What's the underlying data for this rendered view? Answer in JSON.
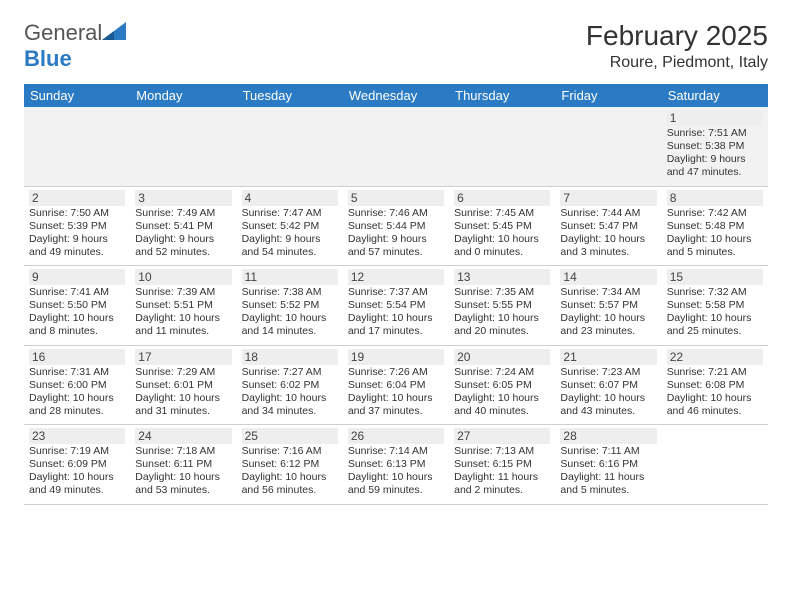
{
  "brand": {
    "name_a": "General",
    "name_b": "Blue"
  },
  "title": "February 2025",
  "location": "Roure, Piedmont, Italy",
  "colors": {
    "header_bg": "#2b7ac4",
    "header_fg": "#ffffff",
    "daynum_bg": "#eeeeee"
  },
  "day_headers": [
    "Sunday",
    "Monday",
    "Tuesday",
    "Wednesday",
    "Thursday",
    "Friday",
    "Saturday"
  ],
  "weeks": [
    [
      {
        "n": "",
        "lines": []
      },
      {
        "n": "",
        "lines": []
      },
      {
        "n": "",
        "lines": []
      },
      {
        "n": "",
        "lines": []
      },
      {
        "n": "",
        "lines": []
      },
      {
        "n": "",
        "lines": []
      },
      {
        "n": "1",
        "lines": [
          "Sunrise: 7:51 AM",
          "Sunset: 5:38 PM",
          "Daylight: 9 hours",
          "and 47 minutes."
        ]
      }
    ],
    [
      {
        "n": "2",
        "lines": [
          "Sunrise: 7:50 AM",
          "Sunset: 5:39 PM",
          "Daylight: 9 hours",
          "and 49 minutes."
        ]
      },
      {
        "n": "3",
        "lines": [
          "Sunrise: 7:49 AM",
          "Sunset: 5:41 PM",
          "Daylight: 9 hours",
          "and 52 minutes."
        ]
      },
      {
        "n": "4",
        "lines": [
          "Sunrise: 7:47 AM",
          "Sunset: 5:42 PM",
          "Daylight: 9 hours",
          "and 54 minutes."
        ]
      },
      {
        "n": "5",
        "lines": [
          "Sunrise: 7:46 AM",
          "Sunset: 5:44 PM",
          "Daylight: 9 hours",
          "and 57 minutes."
        ]
      },
      {
        "n": "6",
        "lines": [
          "Sunrise: 7:45 AM",
          "Sunset: 5:45 PM",
          "Daylight: 10 hours",
          "and 0 minutes."
        ]
      },
      {
        "n": "7",
        "lines": [
          "Sunrise: 7:44 AM",
          "Sunset: 5:47 PM",
          "Daylight: 10 hours",
          "and 3 minutes."
        ]
      },
      {
        "n": "8",
        "lines": [
          "Sunrise: 7:42 AM",
          "Sunset: 5:48 PM",
          "Daylight: 10 hours",
          "and 5 minutes."
        ]
      }
    ],
    [
      {
        "n": "9",
        "lines": [
          "Sunrise: 7:41 AM",
          "Sunset: 5:50 PM",
          "Daylight: 10 hours",
          "and 8 minutes."
        ]
      },
      {
        "n": "10",
        "lines": [
          "Sunrise: 7:39 AM",
          "Sunset: 5:51 PM",
          "Daylight: 10 hours",
          "and 11 minutes."
        ]
      },
      {
        "n": "11",
        "lines": [
          "Sunrise: 7:38 AM",
          "Sunset: 5:52 PM",
          "Daylight: 10 hours",
          "and 14 minutes."
        ]
      },
      {
        "n": "12",
        "lines": [
          "Sunrise: 7:37 AM",
          "Sunset: 5:54 PM",
          "Daylight: 10 hours",
          "and 17 minutes."
        ]
      },
      {
        "n": "13",
        "lines": [
          "Sunrise: 7:35 AM",
          "Sunset: 5:55 PM",
          "Daylight: 10 hours",
          "and 20 minutes."
        ]
      },
      {
        "n": "14",
        "lines": [
          "Sunrise: 7:34 AM",
          "Sunset: 5:57 PM",
          "Daylight: 10 hours",
          "and 23 minutes."
        ]
      },
      {
        "n": "15",
        "lines": [
          "Sunrise: 7:32 AM",
          "Sunset: 5:58 PM",
          "Daylight: 10 hours",
          "and 25 minutes."
        ]
      }
    ],
    [
      {
        "n": "16",
        "lines": [
          "Sunrise: 7:31 AM",
          "Sunset: 6:00 PM",
          "Daylight: 10 hours",
          "and 28 minutes."
        ]
      },
      {
        "n": "17",
        "lines": [
          "Sunrise: 7:29 AM",
          "Sunset: 6:01 PM",
          "Daylight: 10 hours",
          "and 31 minutes."
        ]
      },
      {
        "n": "18",
        "lines": [
          "Sunrise: 7:27 AM",
          "Sunset: 6:02 PM",
          "Daylight: 10 hours",
          "and 34 minutes."
        ]
      },
      {
        "n": "19",
        "lines": [
          "Sunrise: 7:26 AM",
          "Sunset: 6:04 PM",
          "Daylight: 10 hours",
          "and 37 minutes."
        ]
      },
      {
        "n": "20",
        "lines": [
          "Sunrise: 7:24 AM",
          "Sunset: 6:05 PM",
          "Daylight: 10 hours",
          "and 40 minutes."
        ]
      },
      {
        "n": "21",
        "lines": [
          "Sunrise: 7:23 AM",
          "Sunset: 6:07 PM",
          "Daylight: 10 hours",
          "and 43 minutes."
        ]
      },
      {
        "n": "22",
        "lines": [
          "Sunrise: 7:21 AM",
          "Sunset: 6:08 PM",
          "Daylight: 10 hours",
          "and 46 minutes."
        ]
      }
    ],
    [
      {
        "n": "23",
        "lines": [
          "Sunrise: 7:19 AM",
          "Sunset: 6:09 PM",
          "Daylight: 10 hours",
          "and 49 minutes."
        ]
      },
      {
        "n": "24",
        "lines": [
          "Sunrise: 7:18 AM",
          "Sunset: 6:11 PM",
          "Daylight: 10 hours",
          "and 53 minutes."
        ]
      },
      {
        "n": "25",
        "lines": [
          "Sunrise: 7:16 AM",
          "Sunset: 6:12 PM",
          "Daylight: 10 hours",
          "and 56 minutes."
        ]
      },
      {
        "n": "26",
        "lines": [
          "Sunrise: 7:14 AM",
          "Sunset: 6:13 PM",
          "Daylight: 10 hours",
          "and 59 minutes."
        ]
      },
      {
        "n": "27",
        "lines": [
          "Sunrise: 7:13 AM",
          "Sunset: 6:15 PM",
          "Daylight: 11 hours",
          "and 2 minutes."
        ]
      },
      {
        "n": "28",
        "lines": [
          "Sunrise: 7:11 AM",
          "Sunset: 6:16 PM",
          "Daylight: 11 hours",
          "and 5 minutes."
        ]
      },
      {
        "n": "",
        "lines": []
      }
    ]
  ]
}
